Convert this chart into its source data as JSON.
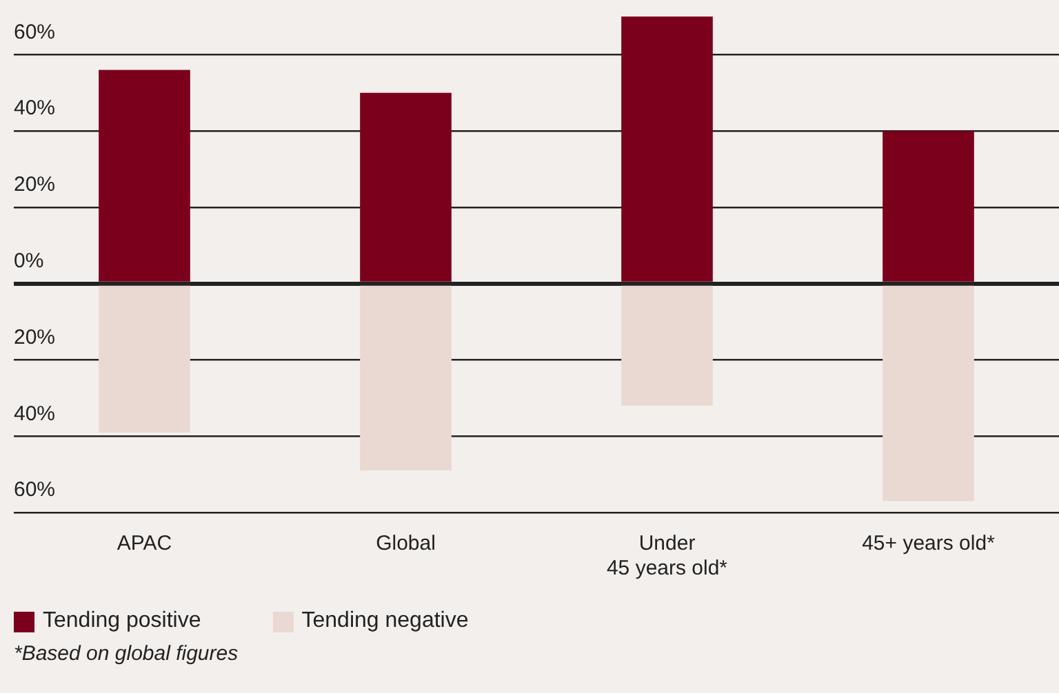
{
  "chart_data": {
    "type": "bar",
    "stacked": true,
    "categories": [
      "APAC",
      "Global",
      "Under\n45 years old*",
      "45+ years old*"
    ],
    "series": [
      {
        "name": "Tending positive",
        "color": "#7b001c",
        "values": [
          56,
          50,
          70,
          40
        ]
      },
      {
        "name": "Tending negative",
        "color": "#ead9d3",
        "values": [
          -39,
          -49,
          -32,
          -57
        ]
      }
    ],
    "ylim": [
      -60,
      70
    ],
    "yticks": [
      {
        "value": -60,
        "label": "60%"
      },
      {
        "value": -40,
        "label": "40%"
      },
      {
        "value": -20,
        "label": "20%"
      },
      {
        "value": 0,
        "label": "0%"
      },
      {
        "value": 20,
        "label": "20%"
      },
      {
        "value": 40,
        "label": "40%"
      },
      {
        "value": 60,
        "label": "60%"
      }
    ],
    "grid": "y",
    "legend": "bottom left",
    "annotations": [
      "*Based on global figures"
    ]
  }
}
